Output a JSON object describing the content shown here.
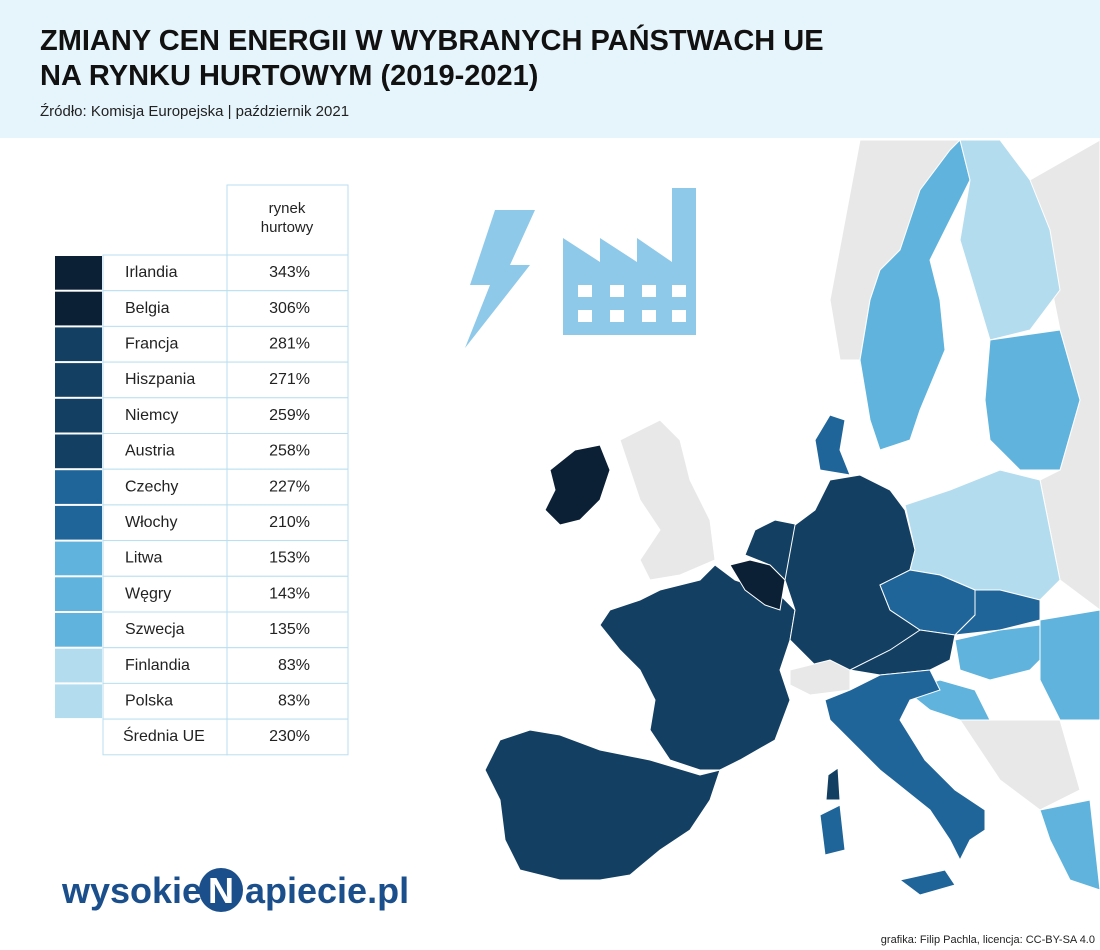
{
  "header": {
    "title_lines": [
      "ZMIANY CEN ENERGII W WYBRANYCH PAŃSTWACH UE",
      "NA RYNKU HURTOWYM (2019-2021)"
    ],
    "source": "Źródło: Komisja Europejska | październik 2021"
  },
  "table": {
    "column_header_lines": [
      "rynek",
      "hurtowy"
    ],
    "rows": [
      {
        "country": "Irlandia",
        "value": "343%",
        "color": "#0b1f35"
      },
      {
        "country": "Belgia",
        "value": "306%",
        "color": "#0b1f35"
      },
      {
        "country": "Francja",
        "value": "281%",
        "color": "#123f62"
      },
      {
        "country": "Hiszpania",
        "value": "271%",
        "color": "#123f62"
      },
      {
        "country": "Niemcy",
        "value": "259%",
        "color": "#123f62"
      },
      {
        "country": "Austria",
        "value": "258%",
        "color": "#123f62"
      },
      {
        "country": "Czechy",
        "value": "227%",
        "color": "#1f6599"
      },
      {
        "country": "Włochy",
        "value": "210%",
        "color": "#1f6599"
      },
      {
        "country": "Litwa",
        "value": "153%",
        "color": "#5fb3dc"
      },
      {
        "country": "Węgry",
        "value": "143%",
        "color": "#5fb3dc"
      },
      {
        "country": "Szwecja",
        "value": "135%",
        "color": "#5fb3dc"
      },
      {
        "country": "Finlandia",
        "value": "83%",
        "color": "#b3dcee"
      },
      {
        "country": "Polska",
        "value": "83%",
        "color": "#b3dcee"
      }
    ],
    "average": {
      "label": "Średnia UE",
      "value": "230%"
    }
  },
  "logo": {
    "parts": [
      "wysokie",
      "N",
      "apiecie.pl"
    ]
  },
  "credit": "grafika: Filip Pachla, licencja: CC-BY-SA 4.0"
}
